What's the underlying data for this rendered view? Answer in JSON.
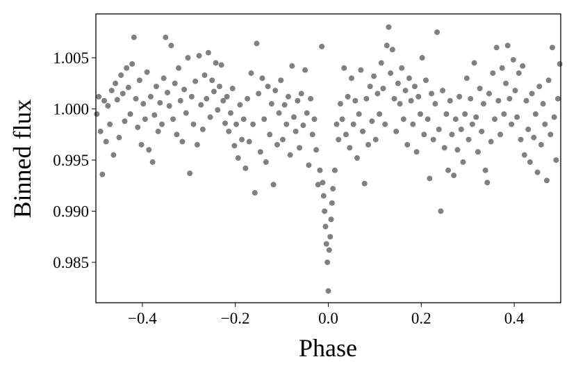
{
  "chart_data": {
    "type": "scatter",
    "x_label": "Phase",
    "y_label": "Binned flux",
    "xlim": [
      -0.5,
      0.5
    ],
    "ylim": [
      0.98105,
      1.00929
    ],
    "xticks": [
      {
        "value": -0.4,
        "label": "−0.4"
      },
      {
        "value": -0.2,
        "label": "−0.2"
      },
      {
        "value": 0,
        "label": "0.0"
      },
      0.2,
      0.4
    ],
    "yticks": [
      0.985,
      {
        "value": 0.99,
        "label": "0.990"
      },
      0.995,
      {
        "value": 1,
        "label": "1.000"
      },
      1.005
    ],
    "color": "#808080",
    "x": [
      -0.498,
      -0.494,
      -0.49,
      -0.486,
      -0.482,
      -0.478,
      -0.474,
      -0.47,
      -0.466,
      -0.462,
      -0.458,
      -0.454,
      -0.45,
      -0.446,
      -0.442,
      -0.438,
      -0.434,
      -0.43,
      -0.426,
      -0.422,
      -0.418,
      -0.414,
      -0.41,
      -0.406,
      -0.402,
      -0.398,
      -0.394,
      -0.39,
      -0.386,
      -0.382,
      -0.378,
      -0.374,
      -0.37,
      -0.366,
      -0.362,
      -0.358,
      -0.354,
      -0.35,
      -0.346,
      -0.342,
      -0.338,
      -0.334,
      -0.33,
      -0.326,
      -0.322,
      -0.318,
      -0.314,
      -0.31,
      -0.306,
      -0.302,
      -0.298,
      -0.294,
      -0.29,
      -0.286,
      -0.282,
      -0.278,
      -0.274,
      -0.27,
      -0.266,
      -0.262,
      -0.258,
      -0.254,
      -0.25,
      -0.246,
      -0.242,
      -0.238,
      -0.234,
      -0.23,
      -0.226,
      -0.222,
      -0.218,
      -0.214,
      -0.21,
      -0.206,
      -0.202,
      -0.198,
      -0.194,
      -0.19,
      -0.186,
      -0.182,
      -0.178,
      -0.174,
      -0.17,
      -0.166,
      -0.162,
      -0.158,
      -0.154,
      -0.15,
      -0.146,
      -0.142,
      -0.138,
      -0.134,
      -0.13,
      -0.126,
      -0.122,
      -0.118,
      -0.114,
      -0.11,
      -0.106,
      -0.102,
      -0.098,
      -0.094,
      -0.09,
      -0.086,
      -0.082,
      -0.078,
      -0.074,
      -0.07,
      -0.066,
      -0.062,
      -0.058,
      -0.054,
      -0.05,
      -0.046,
      -0.042,
      -0.038,
      -0.034,
      -0.03,
      -0.026,
      -0.022,
      -0.018,
      -0.014,
      -0.012,
      -0.01,
      -0.008,
      -0.006,
      -0.004,
      -0.002,
      0.0,
      0.002,
      0.004,
      0.006,
      0.008,
      0.01,
      0.014,
      0.018,
      0.022,
      0.026,
      0.03,
      0.034,
      0.038,
      0.042,
      0.046,
      0.05,
      0.054,
      0.058,
      0.062,
      0.066,
      0.07,
      0.074,
      0.078,
      0.082,
      0.086,
      0.09,
      0.094,
      0.098,
      0.102,
      0.106,
      0.11,
      0.114,
      0.118,
      0.122,
      0.126,
      0.13,
      0.134,
      0.138,
      0.142,
      0.146,
      0.15,
      0.154,
      0.158,
      0.162,
      0.166,
      0.17,
      0.174,
      0.178,
      0.182,
      0.186,
      0.19,
      0.194,
      0.198,
      0.202,
      0.206,
      0.21,
      0.214,
      0.218,
      0.222,
      0.226,
      0.23,
      0.234,
      0.238,
      0.242,
      0.246,
      0.25,
      0.254,
      0.258,
      0.262,
      0.266,
      0.27,
      0.274,
      0.278,
      0.282,
      0.286,
      0.29,
      0.294,
      0.298,
      0.302,
      0.306,
      0.31,
      0.314,
      0.318,
      0.322,
      0.326,
      0.33,
      0.334,
      0.338,
      0.342,
      0.346,
      0.35,
      0.354,
      0.358,
      0.362,
      0.366,
      0.37,
      0.374,
      0.378,
      0.382,
      0.386,
      0.39,
      0.394,
      0.398,
      0.402,
      0.406,
      0.41,
      0.414,
      0.418,
      0.422,
      0.426,
      0.43,
      0.434,
      0.438,
      0.442,
      0.446,
      0.45,
      0.454,
      0.458,
      0.462,
      0.466,
      0.47,
      0.474,
      0.478,
      0.482,
      0.486,
      0.49,
      0.494,
      0.498
    ],
    "y": [
      0.9995,
      1.0012,
      0.9978,
      0.9936,
      1.0008,
      0.9968,
      1.0003,
      0.9985,
      1.0018,
      0.9955,
      1.0025,
      1.0009,
      0.9972,
      1.0033,
      1.0015,
      0.9988,
      1.004,
      1.0021,
      0.9995,
      1.0044,
      1.007,
      1.001,
      0.9982,
      1.0028,
      0.9965,
      1.0005,
      0.999,
      1.0036,
      0.996,
      1.0012,
      0.9948,
      0.9994,
      1.0022,
      0.9978,
      1.0006,
      0.9985,
      1.003,
      1.007,
      1.0016,
      1.0003,
      1.0062,
      0.999,
      1.0025,
      0.9975,
      1.004,
      1.0008,
      0.9968,
      1.0019,
      0.9996,
      1.005,
      0.9937,
      1.0012,
      0.9985,
      1.0027,
      0.9965,
      1.0052,
      1.0004,
      0.998,
      1.0033,
      1.001,
      1.0055,
      0.9992,
      1.0028,
      1.0017,
      1.0045,
      0.9999,
      1.0022,
      1.0043,
      1.0008,
      0.9986,
      1.0012,
      0.9978,
      0.9996,
      1.002,
      0.9964,
      0.9985,
      0.9952,
      1.0004,
      0.997,
      0.999,
      0.9942,
      1.001,
      0.9968,
      1.0035,
      0.9985,
      0.9918,
      1.0064,
      1.0015,
      0.9958,
      1.003,
      0.999,
      0.9948,
      1.0022,
      0.9975,
      1.0005,
      0.9926,
      1.0018,
      0.9965,
      0.9996,
      1.0028,
      0.997,
      1.0004,
      0.9985,
      1.0012,
      0.9955,
      1.0042,
      0.9992,
      0.9978,
      1.0008,
      0.9962,
      1.0015,
      0.9984,
      1.0038,
      0.9996,
      0.9945,
      1.001,
      0.9975,
      0.999,
      0.996,
      0.9926,
      0.994,
      1.0061,
      0.9928,
      0.9915,
      0.99,
      0.9885,
      0.9868,
      0.985,
      0.9822,
      0.9862,
      0.9875,
      0.9892,
      0.9908,
      0.9922,
      0.994,
      0.9985,
      0.997,
      1.0005,
      0.999,
      1.004,
      0.9975,
      1.0012,
      0.9962,
      1.003,
      0.9985,
      1.0008,
      0.9952,
      0.9995,
      1.0038,
      0.9978,
      0.9927,
      1.001,
      0.9965,
      1.0022,
      0.9988,
      1.0032,
      0.997,
      1.0015,
      0.9995,
      1.0045,
      1.002,
      0.9985,
      1.0062,
      1.008,
      1.0035,
      1.0058,
      1.001,
      0.9978,
      1.0025,
      1.0005,
      1.004,
      0.999,
      1.0018,
      0.9965,
      1.003,
      1.0008,
      0.9985,
      1.0022,
      0.9958,
      1.0012,
      0.9995,
      1.005,
      0.9975,
      1.0028,
      0.999,
      0.9932,
      1.0015,
      0.997,
      1.0005,
      1.0075,
      0.998,
      0.99,
      1.0018,
      0.9962,
      0.9995,
      0.994,
      1.0008,
      0.9975,
      0.9935,
      0.999,
      0.996,
      1.0012,
      0.998,
      0.9948,
      0.9995,
      1.003,
      0.997,
      1.001,
      0.9985,
      1.0045,
      0.9992,
      0.9958,
      1.002,
      0.9978,
      1.0005,
      0.994,
      0.9928,
      1.0015,
      0.9968,
      1.0035,
      0.999,
      1.006,
      1.0008,
      0.9975,
      1.004,
      0.9995,
      1.0025,
      1.0062,
      1.001,
      0.9985,
      1.0048,
      1.0018,
      0.9992,
      1.0035,
      0.997,
      1.0042,
      0.9955,
      1.0008,
      0.998,
      0.9948,
      1.0015,
      0.9972,
      0.9995,
      0.9938,
      1.0022,
      0.9965,
      1.0005,
      0.9985,
      0.993,
      1.0028,
      0.9975,
      1.006,
      0.9992,
      0.995,
      1.001,
      1.0044
    ]
  }
}
